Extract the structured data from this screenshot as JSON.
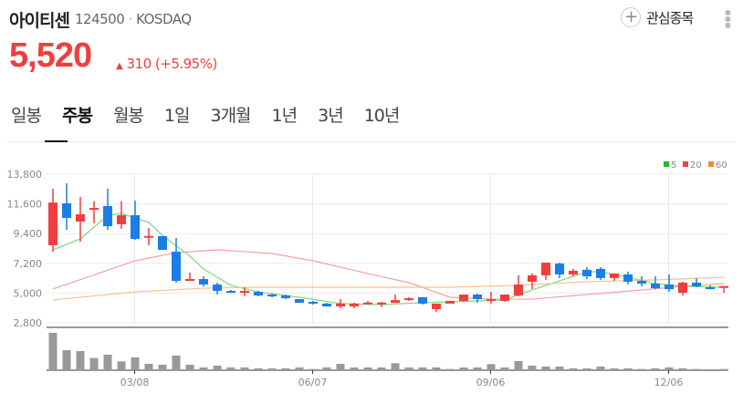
{
  "header": {
    "name": "아이티센",
    "code": "124500",
    "separator": "·",
    "market": "KOSDAQ",
    "watchlist_label": "관심종목",
    "price": "5,520",
    "change": "310",
    "change_pct": "(+5.95%)",
    "up_color": "#f03e3e"
  },
  "tabs": [
    {
      "label": "일봉"
    },
    {
      "label": "주봉",
      "selected": true
    },
    {
      "label": "월봉"
    },
    {
      "label": "1일"
    },
    {
      "label": "3개월"
    },
    {
      "label": "1년"
    },
    {
      "label": "3년"
    },
    {
      "label": "10년"
    }
  ],
  "chart_data": {
    "type": "candlestick",
    "ylim": [
      2800,
      13800
    ],
    "yticks": [
      "13,800",
      "11,600",
      "9,400",
      "7,200",
      "5,000",
      "2,800"
    ],
    "ytick_values": [
      13800,
      11600,
      9400,
      7200,
      5000,
      2800
    ],
    "xticks": [
      {
        "label": "03/08",
        "index": 6
      },
      {
        "label": "06/07",
        "index": 19
      },
      {
        "label": "09/06",
        "index": 32
      },
      {
        "label": "12/06",
        "index": 45
      }
    ],
    "grid": true,
    "legend": {
      "placement": "top-right",
      "items": [
        {
          "label": "5",
          "color": "#22bb22"
        },
        {
          "label": "20",
          "color": "#f03e3e"
        },
        {
          "label": "60",
          "color": "#f08c28"
        }
      ]
    },
    "colors": {
      "up": "#f03e3e",
      "down": "#1a7ee6",
      "volume": "#999999"
    },
    "ohlc": [
      [
        8540,
        12720,
        8060,
        11700
      ],
      [
        11640,
        13125,
        9680,
        10560
      ],
      [
        10290,
        12110,
        8800,
        10830
      ],
      [
        11280,
        11800,
        10160,
        11300
      ],
      [
        11440,
        12720,
        9680,
        9950
      ],
      [
        10090,
        11800,
        9750,
        10760
      ],
      [
        10760,
        11840,
        8940,
        9010
      ],
      [
        9180,
        9820,
        8540,
        9230
      ],
      [
        9210,
        9210,
        8200,
        8200
      ],
      [
        8060,
        9080,
        5770,
        5900
      ],
      [
        5900,
        6510,
        5900,
        6040
      ],
      [
        6040,
        6240,
        5490,
        5630
      ],
      [
        5630,
        5770,
        4890,
        5160
      ],
      [
        5160,
        5230,
        5020,
        5020
      ],
      [
        5020,
        5430,
        4760,
        5160
      ],
      [
        5090,
        5160,
        4760,
        4820
      ],
      [
        4890,
        4960,
        4690,
        4760
      ],
      [
        4820,
        4890,
        4550,
        4620
      ],
      [
        4550,
        4550,
        4280,
        4280
      ],
      [
        4350,
        4420,
        4150,
        4220
      ],
      [
        4220,
        4280,
        4010,
        4010
      ],
      [
        4010,
        4550,
        3880,
        4220
      ],
      [
        4010,
        4280,
        3880,
        4220
      ],
      [
        4260,
        4420,
        4150,
        4300
      ],
      [
        4260,
        4350,
        3950,
        4300
      ],
      [
        4280,
        4890,
        4280,
        4480
      ],
      [
        4480,
        4690,
        4420,
        4620
      ],
      [
        4690,
        4690,
        4150,
        4220
      ],
      [
        3810,
        4220,
        3600,
        4220
      ],
      [
        4220,
        4420,
        4220,
        4420
      ],
      [
        4420,
        4890,
        4350,
        4890
      ],
      [
        4890,
        4960,
        4280,
        4550
      ],
      [
        4420,
        5090,
        4220,
        4550
      ],
      [
        4420,
        4890,
        4350,
        4890
      ],
      [
        4820,
        6310,
        4760,
        5630
      ],
      [
        5840,
        6450,
        5300,
        6310
      ],
      [
        6310,
        7250,
        5970,
        7250
      ],
      [
        7190,
        7250,
        6110,
        6380
      ],
      [
        6380,
        6790,
        6240,
        6650
      ],
      [
        6720,
        6920,
        6030,
        6240
      ],
      [
        6790,
        6920,
        5970,
        6110
      ],
      [
        6110,
        6450,
        5900,
        6450
      ],
      [
        6380,
        6590,
        5630,
        5840
      ],
      [
        5900,
        6240,
        5500,
        5700
      ],
      [
        5700,
        6240,
        5290,
        5360
      ],
      [
        5630,
        6380,
        5090,
        5290
      ],
      [
        5020,
        5840,
        4820,
        5770
      ],
      [
        5770,
        6110,
        5430,
        5500
      ],
      [
        5430,
        5570,
        5290,
        5290
      ],
      [
        5430,
        5430,
        5020,
        5520
      ]
    ],
    "volume_relative": [
      123,
      66,
      63,
      40,
      51,
      29,
      42,
      21,
      18,
      48,
      18,
      9,
      15,
      9,
      9,
      6,
      6,
      6,
      9,
      4,
      9,
      21,
      9,
      9,
      9,
      23,
      9,
      9,
      9,
      4,
      9,
      9,
      20,
      9,
      30,
      15,
      12,
      12,
      6,
      6,
      12,
      6,
      6,
      4,
      6,
      9,
      6,
      4,
      3,
      4
    ],
    "moving_averages": [
      {
        "label": "5",
        "points": [
          [
            0,
            8200
          ],
          [
            2,
            9010
          ],
          [
            4,
            10760
          ],
          [
            5,
            10890
          ],
          [
            7,
            10220
          ],
          [
            8,
            9280
          ],
          [
            10,
            7730
          ],
          [
            11,
            6780
          ],
          [
            13,
            5570
          ],
          [
            15,
            5090
          ],
          [
            18,
            4690
          ],
          [
            21,
            4220
          ],
          [
            24,
            4150
          ],
          [
            27,
            4280
          ],
          [
            31,
            4420
          ],
          [
            33,
            4490
          ],
          [
            35,
            5230
          ],
          [
            37,
            5900
          ],
          [
            39,
            6580
          ],
          [
            40,
            6580
          ],
          [
            42,
            6170
          ],
          [
            44,
            5700
          ],
          [
            46,
            5500
          ],
          [
            49,
            5430
          ]
        ]
      },
      {
        "label": "20",
        "points": [
          [
            0,
            5300
          ],
          [
            6,
            7390
          ],
          [
            9,
            7990
          ],
          [
            12,
            8200
          ],
          [
            16,
            7930
          ],
          [
            19,
            7390
          ],
          [
            23,
            6440
          ],
          [
            26,
            5770
          ],
          [
            29,
            4690
          ],
          [
            32,
            4550
          ],
          [
            35,
            4550
          ],
          [
            39,
            4890
          ],
          [
            43,
            5230
          ],
          [
            46,
            5500
          ],
          [
            49,
            5700
          ]
        ]
      },
      {
        "label": "60",
        "points": [
          [
            0,
            4490
          ],
          [
            6,
            5090
          ],
          [
            11,
            5360
          ],
          [
            15,
            5430
          ],
          [
            29,
            5430
          ],
          [
            34,
            5570
          ],
          [
            39,
            5840
          ],
          [
            44,
            5970
          ],
          [
            49,
            6170
          ]
        ]
      }
    ]
  }
}
